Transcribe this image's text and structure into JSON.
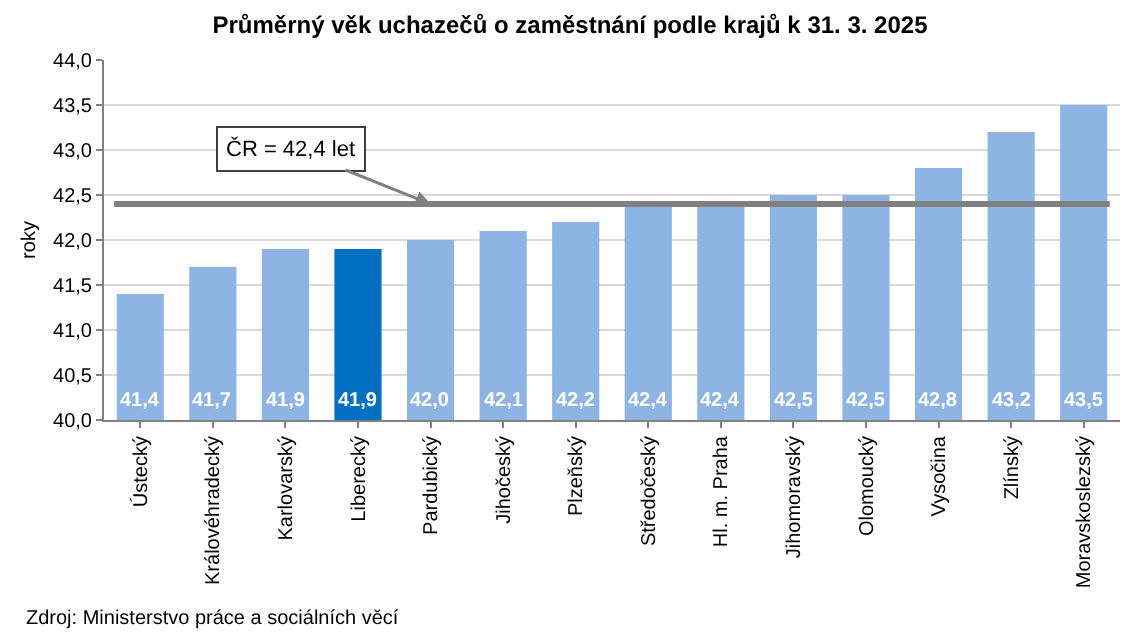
{
  "chart_data": {
    "type": "bar",
    "title": "Průměrný věk uchazečů o zaměstnání podle krajů k 31. 3. 2025",
    "ylabel": "roky",
    "categories": [
      "Ústecký",
      "Královéhradecký",
      "Karlovarský",
      "Liberecký",
      "Pardubický",
      "Jihočeský",
      "Plzeňský",
      "Středočeský",
      "Hl. m. Praha",
      "Jihomoravský",
      "Olomoucký",
      "Vysočina",
      "Zlínský",
      "Moravskoslezský"
    ],
    "values": [
      41.4,
      41.7,
      41.9,
      41.9,
      42.0,
      42.1,
      42.2,
      42.4,
      42.4,
      42.5,
      42.5,
      42.8,
      43.2,
      43.5
    ],
    "colors": [
      "#8eb4e3",
      "#8eb4e3",
      "#8eb4e3",
      "#0070c0",
      "#8eb4e3",
      "#8eb4e3",
      "#8eb4e3",
      "#8eb4e3",
      "#8eb4e3",
      "#8eb4e3",
      "#8eb4e3",
      "#8eb4e3",
      "#8eb4e3",
      "#8eb4e3"
    ],
    "value_labels": [
      "41,4",
      "41,7",
      "41,9",
      "41,9",
      "42,0",
      "42,1",
      "42,2",
      "42,4",
      "42,4",
      "42,5",
      "42,5",
      "42,8",
      "43,2",
      "43,5"
    ],
    "ylim": [
      40,
      44
    ],
    "yticks": [
      {
        "value": 40,
        "label": "40,0"
      },
      {
        "value": 40.5,
        "label": "40,5"
      },
      {
        "value": 41,
        "label": "41,0"
      },
      {
        "value": 41.5,
        "label": "41,5"
      },
      {
        "value": 42,
        "label": "42,0"
      },
      {
        "value": 42.5,
        "label": "42,5"
      },
      {
        "value": 43,
        "label": "43,0"
      },
      {
        "value": 43.5,
        "label": "43,5"
      },
      {
        "value": 44,
        "label": "44,0"
      }
    ],
    "grid": "y",
    "ref_lines": [
      {
        "axis": "y",
        "value": 42.4,
        "label": "ČR = 42,4 let",
        "color": "#808080"
      }
    ],
    "annotations": [
      "Zdroj: Ministerstvo práce a sociálních věcí"
    ]
  }
}
